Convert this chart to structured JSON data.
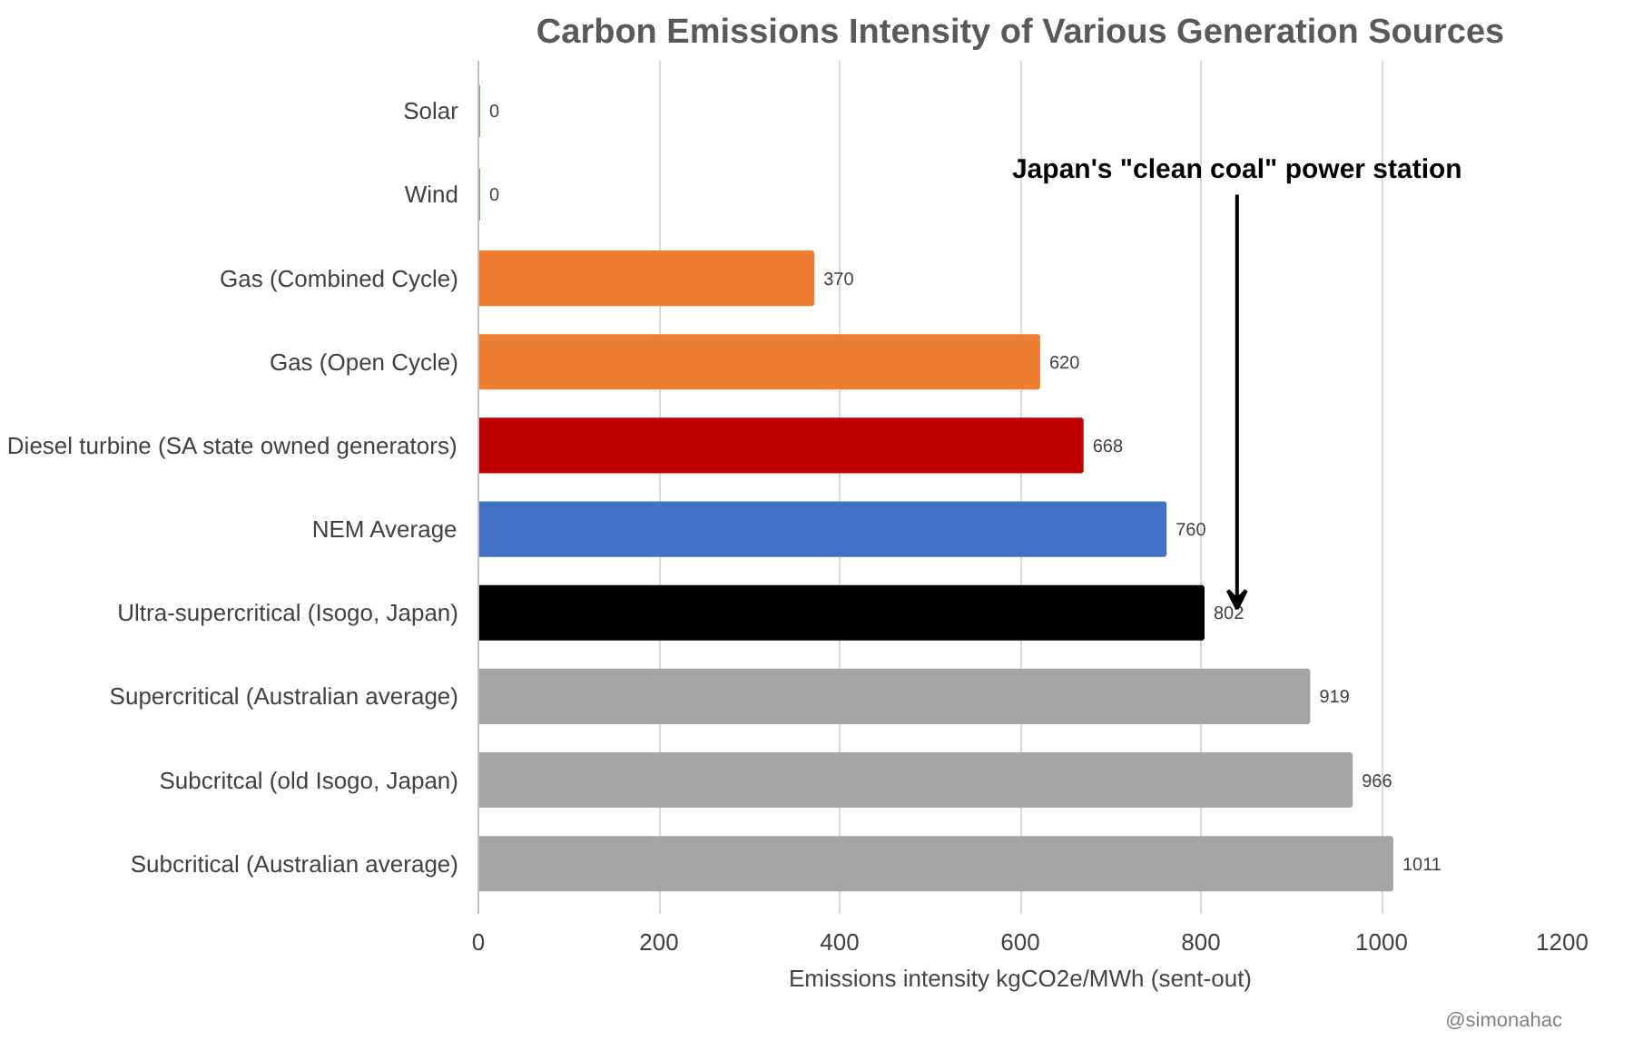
{
  "chart_data": {
    "type": "bar",
    "orientation": "horizontal",
    "title": "Carbon Emissions Intensity of Various Generation Sources",
    "xlabel": "Emissions intensity kgCO2e/MWh (sent-out)",
    "categories": [
      "Solar",
      "Wind",
      "Gas (Combined Cycle)",
      "Gas (Open Cycle)",
      "Diesel turbine (SA state owned generators)",
      "NEM Average",
      "Ultra-supercritical (Isogo, Japan)",
      "Supercritical (Australian average)",
      "Subcritcal (old Isogo, Japan)",
      "Subcritical (Australian average)"
    ],
    "values": [
      0,
      0,
      370,
      620,
      668,
      760,
      802,
      919,
      966,
      1011
    ],
    "colors": [
      "#70ad47",
      "#70ad47",
      "#ed7d31",
      "#ed7d31",
      "#c00000",
      "#4472c4",
      "#000000",
      "#a5a5a5",
      "#a5a5a5",
      "#a5a5a5"
    ],
    "xlim": [
      0,
      1200
    ],
    "xticks": [
      0,
      200,
      400,
      600,
      800,
      1000,
      1200
    ],
    "grid": "x",
    "data_labels": true,
    "annotations": [
      "Japan's \"clean coal\" power station",
      "@simonahac"
    ]
  }
}
